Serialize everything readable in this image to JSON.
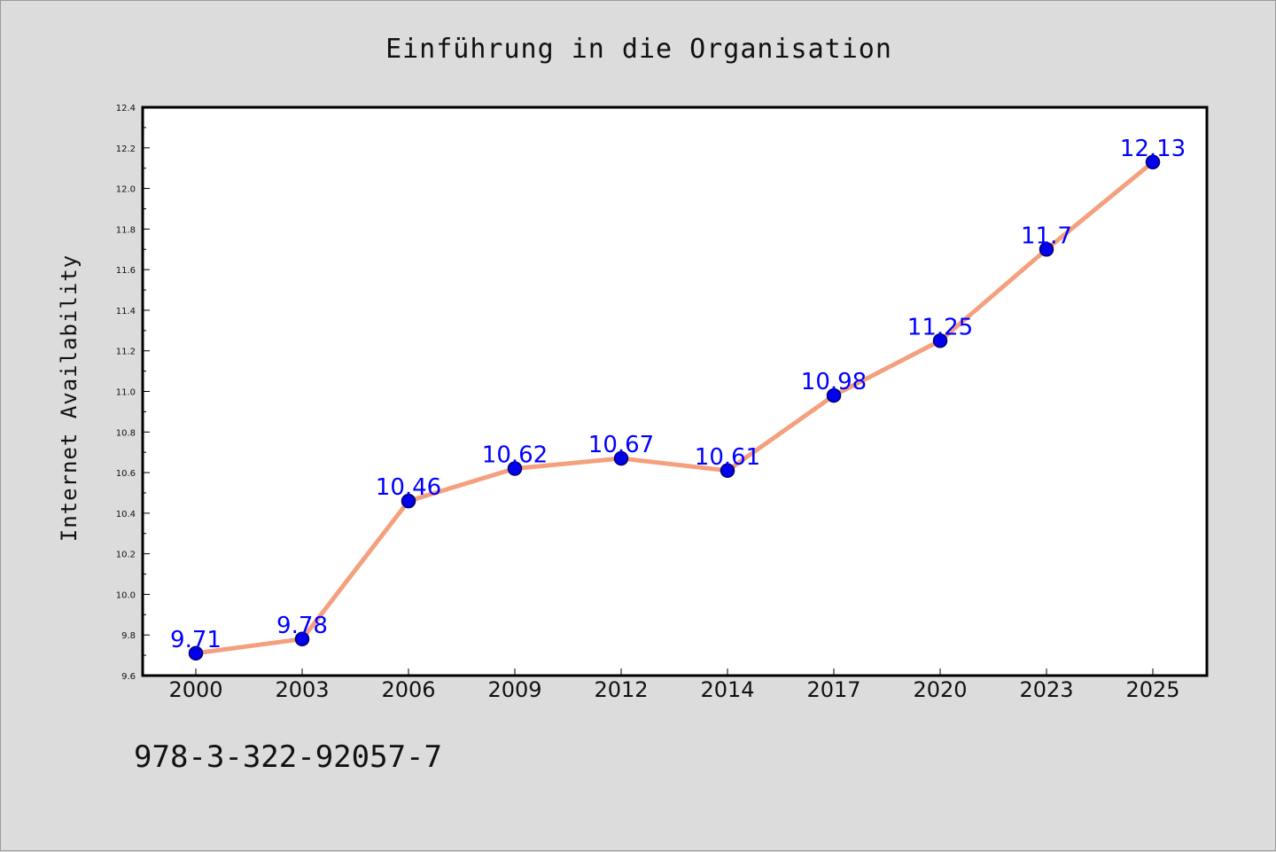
{
  "chart_data": {
    "type": "line",
    "title": "Einführung in die Organisation",
    "xlabel": "",
    "ylabel": "Internet Availability",
    "categories": [
      "2000",
      "2003",
      "2006",
      "2009",
      "2012",
      "2014",
      "2017",
      "2020",
      "2023",
      "2025"
    ],
    "series": [
      {
        "values": [
          9.71,
          9.78,
          10.46,
          10.62,
          10.67,
          10.61,
          10.98,
          11.25,
          11.7,
          12.13
        ],
        "data_labels": [
          "9.71",
          "9.78",
          "10.46",
          "10.62",
          "10.67",
          "10.61",
          "10.98",
          "11.25",
          "11.7",
          "12.13"
        ],
        "line_color": "#f4a07e",
        "marker_color": "#0000ee",
        "label_color": "#0000ff"
      }
    ],
    "ylim": [
      9.6,
      12.4
    ],
    "yticks": [
      "9.6",
      "9.8",
      "10.0",
      "10.2",
      "10.4",
      "10.6",
      "10.8",
      "11.0",
      "11.2",
      "11.4",
      "11.6",
      "11.8",
      "12.0",
      "12.2",
      "12.4"
    ],
    "grid": false,
    "legend": "none"
  },
  "footer": {
    "isbn": "978-3-322-92057-7"
  }
}
